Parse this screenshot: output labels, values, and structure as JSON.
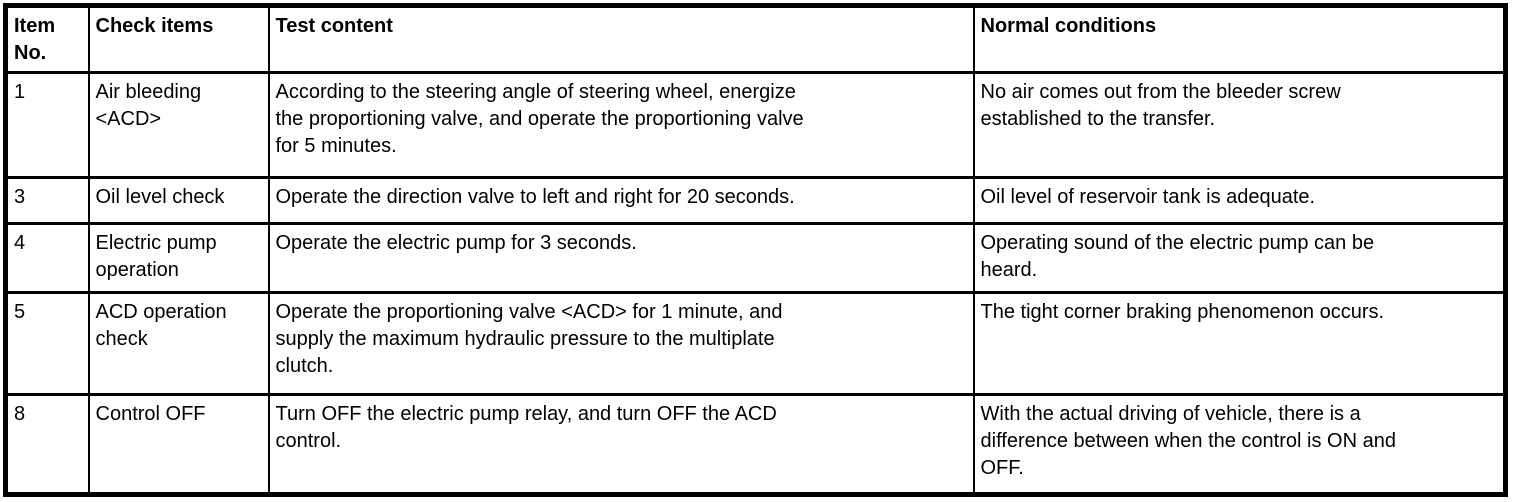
{
  "page": {
    "background_color": "#ffffff",
    "border_color": "#000000",
    "text_color": "#000000"
  },
  "table": {
    "columns": [
      {
        "label": "Item\nNo."
      },
      {
        "label": "Check items"
      },
      {
        "label": "Test content"
      },
      {
        "label": "Normal conditions"
      }
    ],
    "rows": [
      {
        "item_no": "1",
        "check_items": "Air bleeding\n<ACD>",
        "test_content": "According to the steering angle of steering wheel, energize\nthe proportioning valve, and operate the proportioning valve\nfor 5 minutes.",
        "normal_conditions": "No air comes out from the bleeder screw\nestablished to the transfer."
      },
      {
        "item_no": "3",
        "check_items": "Oil level check",
        "test_content": "Operate the direction valve to left and right for 20 seconds.",
        "normal_conditions": "Oil level of reservoir tank is adequate."
      },
      {
        "item_no": "4",
        "check_items": "Electric pump\noperation",
        "test_content": "Operate the electric pump for 3 seconds.",
        "normal_conditions": "Operating sound of the electric pump can be\nheard."
      },
      {
        "item_no": "5",
        "check_items": "ACD operation\ncheck",
        "test_content": "Operate the proportioning valve <ACD> for 1 minute, and\nsupply the maximum hydraulic pressure to the multiplate\nclutch.",
        "normal_conditions": "The tight corner braking phenomenon occurs."
      },
      {
        "item_no": "8",
        "check_items": "Control OFF",
        "test_content": "Turn OFF the electric pump relay, and turn OFF the ACD\ncontrol.",
        "normal_conditions": "With the actual driving of vehicle, there is a\ndifference between when the control is ON and\nOFF."
      }
    ]
  }
}
